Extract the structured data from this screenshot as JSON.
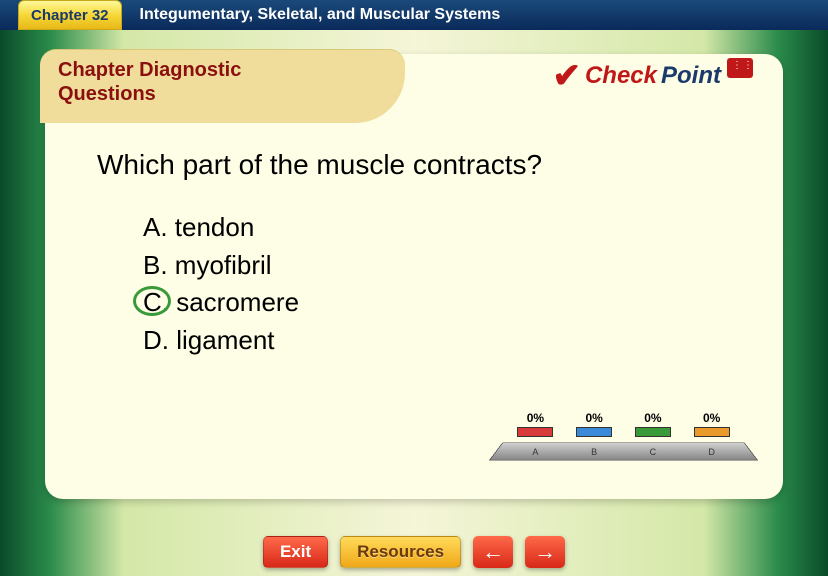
{
  "header": {
    "chapter_tag": "Chapter 32",
    "chapter_title": "Integumentary, Skeletal, and Muscular Systems"
  },
  "card": {
    "tab_line1": "Chapter Diagnostic",
    "tab_line2": "Questions",
    "logo_part1": "Check",
    "logo_part2": "Point"
  },
  "question": "Which part of the muscle contracts?",
  "answers": [
    {
      "letter": "A.",
      "text": "tendon",
      "circled": false
    },
    {
      "letter": "B.",
      "text": "myofibril",
      "circled": false
    },
    {
      "letter": "C.",
      "text": "sacromere",
      "circled": true
    },
    {
      "letter": "D.",
      "text": "ligament",
      "circled": false
    }
  ],
  "poll": {
    "options": [
      {
        "pct": "0%",
        "label": "A",
        "color": "#d83a3a"
      },
      {
        "pct": "0%",
        "label": "B",
        "color": "#3a8ad8"
      },
      {
        "pct": "0%",
        "label": "C",
        "color": "#3a9a3a"
      },
      {
        "pct": "0%",
        "label": "D",
        "color": "#e89a2a"
      }
    ]
  },
  "nav": {
    "exit": "Exit",
    "resources": "Resources",
    "back": "←",
    "forward": "→"
  },
  "colors": {
    "circle": "#3a9a3a",
    "card_bg": "#fefde6",
    "tab_bg": "#f0dd9c"
  }
}
